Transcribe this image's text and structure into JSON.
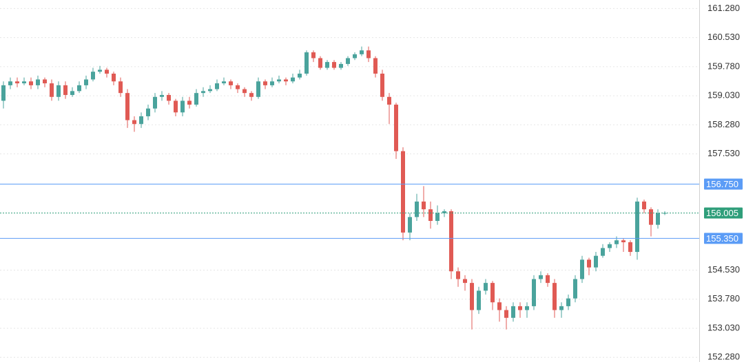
{
  "chart_data": {
    "type": "candlestick",
    "up_color": "#4aa39c",
    "down_color": "#e05a54",
    "grid": true,
    "ylim": [
      152.16,
      161.5
    ],
    "yticks": [
      {
        "value": 161.28,
        "label": "161.280"
      },
      {
        "value": 160.53,
        "label": "160.530"
      },
      {
        "value": 159.78,
        "label": "159.780"
      },
      {
        "value": 159.03,
        "label": "159.030"
      },
      {
        "value": 158.28,
        "label": "158.280"
      },
      {
        "value": 157.53,
        "label": "157.530"
      },
      {
        "value": 154.53,
        "label": "154.530"
      },
      {
        "value": 153.78,
        "label": "153.780"
      },
      {
        "value": 153.03,
        "label": "153.030"
      },
      {
        "value": 152.28,
        "label": "152.280"
      }
    ],
    "levels": [
      {
        "value": 156.75,
        "label": "156.750",
        "color": "#5b9cf6",
        "style": "solid"
      },
      {
        "value": 156.005,
        "label": "156.005",
        "color": "#2f9e7a",
        "style": "dotted"
      },
      {
        "value": 155.35,
        "label": "155.350",
        "color": "#5b9cf6",
        "style": "solid"
      }
    ],
    "open": [
      158.9,
      159.3,
      159.4,
      159.35,
      159.4,
      159.3,
      159.45,
      159.35,
      159.0,
      159.3,
      159.05,
      159.15,
      159.3,
      159.45,
      159.65,
      159.7,
      159.6,
      159.4,
      159.1,
      158.4,
      158.3,
      158.5,
      158.7,
      159.0,
      159.05,
      158.9,
      158.6,
      158.9,
      158.8,
      159.1,
      159.15,
      159.2,
      159.35,
      159.4,
      159.3,
      159.2,
      159.1,
      159.0,
      159.4,
      159.3,
      159.4,
      159.45,
      159.4,
      159.5,
      159.6,
      160.15,
      160.0,
      159.75,
      159.9,
      159.75,
      159.85,
      160.0,
      160.1,
      160.2,
      160.0,
      159.6,
      159.0,
      158.8,
      157.6,
      155.5,
      155.9,
      156.3,
      156.1,
      155.8,
      156.0,
      156.05,
      154.5,
      154.3,
      154.2,
      153.5,
      154.0,
      154.2,
      153.7,
      153.5,
      153.3,
      153.6,
      153.5,
      153.6,
      154.3,
      154.4,
      154.2,
      153.5,
      153.6,
      153.8,
      154.3,
      154.8,
      154.6,
      154.9,
      155.1,
      155.2,
      155.3,
      155.25,
      155.0,
      156.3,
      156.1,
      155.7,
      156.0
    ],
    "high": [
      159.4,
      159.5,
      159.5,
      159.5,
      159.5,
      159.55,
      159.5,
      159.45,
      159.4,
      159.4,
      159.25,
      159.4,
      159.55,
      159.75,
      159.8,
      159.75,
      159.65,
      159.5,
      159.2,
      158.5,
      158.6,
      158.8,
      159.1,
      159.15,
      159.1,
      158.95,
      159.0,
      159.0,
      159.2,
      159.25,
      159.3,
      159.45,
      159.5,
      159.45,
      159.35,
      159.25,
      159.15,
      159.5,
      159.45,
      159.5,
      159.55,
      159.5,
      159.6,
      159.7,
      160.2,
      160.2,
      160.05,
      159.95,
      159.95,
      159.9,
      160.05,
      160.15,
      160.3,
      160.3,
      160.05,
      159.7,
      159.1,
      158.85,
      157.7,
      156.0,
      156.5,
      156.7,
      156.3,
      156.2,
      156.1,
      156.1,
      154.6,
      154.4,
      154.3,
      154.1,
      154.3,
      154.25,
      153.8,
      153.6,
      153.7,
      153.7,
      153.7,
      154.4,
      154.5,
      154.45,
      154.3,
      153.7,
      153.9,
      154.4,
      154.9,
      154.85,
      155.0,
      155.2,
      155.25,
      155.4,
      155.35,
      155.3,
      156.4,
      156.35,
      156.15,
      156.1,
      156.05
    ],
    "low": [
      158.7,
      159.2,
      159.25,
      159.3,
      159.2,
      159.2,
      159.25,
      158.9,
      158.9,
      158.95,
      159.0,
      159.1,
      159.2,
      159.4,
      159.6,
      159.5,
      159.3,
      159.0,
      158.2,
      158.1,
      158.2,
      158.4,
      158.6,
      158.9,
      158.8,
      158.5,
      158.5,
      158.7,
      158.75,
      159.0,
      159.1,
      159.15,
      159.3,
      159.2,
      159.1,
      159.0,
      158.9,
      158.95,
      159.2,
      159.25,
      159.35,
      159.3,
      159.35,
      159.45,
      159.55,
      159.9,
      159.7,
      159.7,
      159.7,
      159.7,
      159.8,
      159.95,
      160.05,
      159.9,
      159.5,
      158.9,
      158.3,
      157.4,
      155.3,
      155.3,
      155.8,
      155.9,
      155.6,
      155.7,
      155.9,
      154.3,
      154.1,
      154.0,
      153.0,
      153.4,
      153.9,
      153.5,
      153.2,
      153.0,
      153.2,
      153.3,
      153.3,
      153.5,
      154.2,
      154.1,
      153.3,
      153.3,
      153.5,
      153.7,
      154.2,
      154.4,
      154.5,
      154.85,
      155.0,
      155.1,
      155.0,
      154.9,
      154.8,
      156.0,
      155.4,
      155.6,
      155.95
    ],
    "close": [
      159.3,
      159.4,
      159.35,
      159.4,
      159.3,
      159.45,
      159.35,
      159.0,
      159.3,
      159.05,
      159.15,
      159.3,
      159.45,
      159.65,
      159.7,
      159.6,
      159.4,
      159.1,
      158.4,
      158.3,
      158.5,
      158.7,
      159.0,
      159.05,
      158.9,
      158.6,
      158.9,
      158.8,
      159.1,
      159.15,
      159.2,
      159.35,
      159.4,
      159.3,
      159.2,
      159.1,
      159.0,
      159.4,
      159.3,
      159.4,
      159.45,
      159.4,
      159.5,
      159.6,
      160.15,
      160.0,
      159.75,
      159.9,
      159.75,
      159.85,
      160.0,
      160.1,
      160.2,
      160.0,
      159.6,
      159.0,
      158.8,
      157.6,
      155.5,
      155.9,
      156.3,
      156.1,
      155.8,
      156.0,
      156.05,
      154.5,
      154.3,
      154.2,
      153.5,
      154.0,
      154.2,
      153.7,
      153.5,
      153.3,
      153.6,
      153.5,
      153.6,
      154.3,
      154.4,
      154.2,
      153.5,
      153.6,
      153.8,
      154.3,
      154.8,
      154.6,
      154.9,
      155.1,
      155.2,
      155.3,
      155.25,
      155.0,
      156.3,
      156.1,
      155.7,
      156.0,
      156.005
    ]
  }
}
